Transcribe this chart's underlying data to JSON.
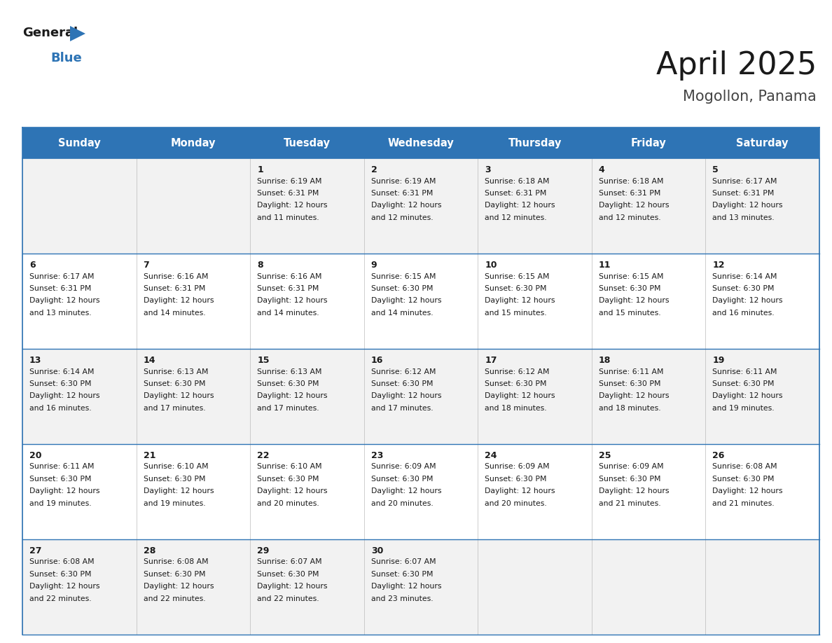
{
  "title": "April 2025",
  "subtitle": "Mogollon, Panama",
  "header_bg": "#2E74B5",
  "header_text_color": "#FFFFFF",
  "day_names": [
    "Sunday",
    "Monday",
    "Tuesday",
    "Wednesday",
    "Thursday",
    "Friday",
    "Saturday"
  ],
  "cell_bg_odd": "#F2F2F2",
  "cell_bg_even": "#FFFFFF",
  "border_color": "#2E74B5",
  "text_color": "#1a1a1a",
  "days": [
    {
      "day": 1,
      "col": 2,
      "row": 0,
      "sunrise": "6:19 AM",
      "sunset": "6:31 PM",
      "daylight": "12 hours",
      "minutes": "and 11 minutes."
    },
    {
      "day": 2,
      "col": 3,
      "row": 0,
      "sunrise": "6:19 AM",
      "sunset": "6:31 PM",
      "daylight": "12 hours",
      "minutes": "and 12 minutes."
    },
    {
      "day": 3,
      "col": 4,
      "row": 0,
      "sunrise": "6:18 AM",
      "sunset": "6:31 PM",
      "daylight": "12 hours",
      "minutes": "and 12 minutes."
    },
    {
      "day": 4,
      "col": 5,
      "row": 0,
      "sunrise": "6:18 AM",
      "sunset": "6:31 PM",
      "daylight": "12 hours",
      "minutes": "and 12 minutes."
    },
    {
      "day": 5,
      "col": 6,
      "row": 0,
      "sunrise": "6:17 AM",
      "sunset": "6:31 PM",
      "daylight": "12 hours",
      "minutes": "and 13 minutes."
    },
    {
      "day": 6,
      "col": 0,
      "row": 1,
      "sunrise": "6:17 AM",
      "sunset": "6:31 PM",
      "daylight": "12 hours",
      "minutes": "and 13 minutes."
    },
    {
      "day": 7,
      "col": 1,
      "row": 1,
      "sunrise": "6:16 AM",
      "sunset": "6:31 PM",
      "daylight": "12 hours",
      "minutes": "and 14 minutes."
    },
    {
      "day": 8,
      "col": 2,
      "row": 1,
      "sunrise": "6:16 AM",
      "sunset": "6:31 PM",
      "daylight": "12 hours",
      "minutes": "and 14 minutes."
    },
    {
      "day": 9,
      "col": 3,
      "row": 1,
      "sunrise": "6:15 AM",
      "sunset": "6:30 PM",
      "daylight": "12 hours",
      "minutes": "and 14 minutes."
    },
    {
      "day": 10,
      "col": 4,
      "row": 1,
      "sunrise": "6:15 AM",
      "sunset": "6:30 PM",
      "daylight": "12 hours",
      "minutes": "and 15 minutes."
    },
    {
      "day": 11,
      "col": 5,
      "row": 1,
      "sunrise": "6:15 AM",
      "sunset": "6:30 PM",
      "daylight": "12 hours",
      "minutes": "and 15 minutes."
    },
    {
      "day": 12,
      "col": 6,
      "row": 1,
      "sunrise": "6:14 AM",
      "sunset": "6:30 PM",
      "daylight": "12 hours",
      "minutes": "and 16 minutes."
    },
    {
      "day": 13,
      "col": 0,
      "row": 2,
      "sunrise": "6:14 AM",
      "sunset": "6:30 PM",
      "daylight": "12 hours",
      "minutes": "and 16 minutes."
    },
    {
      "day": 14,
      "col": 1,
      "row": 2,
      "sunrise": "6:13 AM",
      "sunset": "6:30 PM",
      "daylight": "12 hours",
      "minutes": "and 17 minutes."
    },
    {
      "day": 15,
      "col": 2,
      "row": 2,
      "sunrise": "6:13 AM",
      "sunset": "6:30 PM",
      "daylight": "12 hours",
      "minutes": "and 17 minutes."
    },
    {
      "day": 16,
      "col": 3,
      "row": 2,
      "sunrise": "6:12 AM",
      "sunset": "6:30 PM",
      "daylight": "12 hours",
      "minutes": "and 17 minutes."
    },
    {
      "day": 17,
      "col": 4,
      "row": 2,
      "sunrise": "6:12 AM",
      "sunset": "6:30 PM",
      "daylight": "12 hours",
      "minutes": "and 18 minutes."
    },
    {
      "day": 18,
      "col": 5,
      "row": 2,
      "sunrise": "6:11 AM",
      "sunset": "6:30 PM",
      "daylight": "12 hours",
      "minutes": "and 18 minutes."
    },
    {
      "day": 19,
      "col": 6,
      "row": 2,
      "sunrise": "6:11 AM",
      "sunset": "6:30 PM",
      "daylight": "12 hours",
      "minutes": "and 19 minutes."
    },
    {
      "day": 20,
      "col": 0,
      "row": 3,
      "sunrise": "6:11 AM",
      "sunset": "6:30 PM",
      "daylight": "12 hours",
      "minutes": "and 19 minutes."
    },
    {
      "day": 21,
      "col": 1,
      "row": 3,
      "sunrise": "6:10 AM",
      "sunset": "6:30 PM",
      "daylight": "12 hours",
      "minutes": "and 19 minutes."
    },
    {
      "day": 22,
      "col": 2,
      "row": 3,
      "sunrise": "6:10 AM",
      "sunset": "6:30 PM",
      "daylight": "12 hours",
      "minutes": "and 20 minutes."
    },
    {
      "day": 23,
      "col": 3,
      "row": 3,
      "sunrise": "6:09 AM",
      "sunset": "6:30 PM",
      "daylight": "12 hours",
      "minutes": "and 20 minutes."
    },
    {
      "day": 24,
      "col": 4,
      "row": 3,
      "sunrise": "6:09 AM",
      "sunset": "6:30 PM",
      "daylight": "12 hours",
      "minutes": "and 20 minutes."
    },
    {
      "day": 25,
      "col": 5,
      "row": 3,
      "sunrise": "6:09 AM",
      "sunset": "6:30 PM",
      "daylight": "12 hours",
      "minutes": "and 21 minutes."
    },
    {
      "day": 26,
      "col": 6,
      "row": 3,
      "sunrise": "6:08 AM",
      "sunset": "6:30 PM",
      "daylight": "12 hours",
      "minutes": "and 21 minutes."
    },
    {
      "day": 27,
      "col": 0,
      "row": 4,
      "sunrise": "6:08 AM",
      "sunset": "6:30 PM",
      "daylight": "12 hours",
      "minutes": "and 22 minutes."
    },
    {
      "day": 28,
      "col": 1,
      "row": 4,
      "sunrise": "6:08 AM",
      "sunset": "6:30 PM",
      "daylight": "12 hours",
      "minutes": "and 22 minutes."
    },
    {
      "day": 29,
      "col": 2,
      "row": 4,
      "sunrise": "6:07 AM",
      "sunset": "6:30 PM",
      "daylight": "12 hours",
      "minutes": "and 22 minutes."
    },
    {
      "day": 30,
      "col": 3,
      "row": 4,
      "sunrise": "6:07 AM",
      "sunset": "6:30 PM",
      "daylight": "12 hours",
      "minutes": "and 23 minutes."
    }
  ]
}
